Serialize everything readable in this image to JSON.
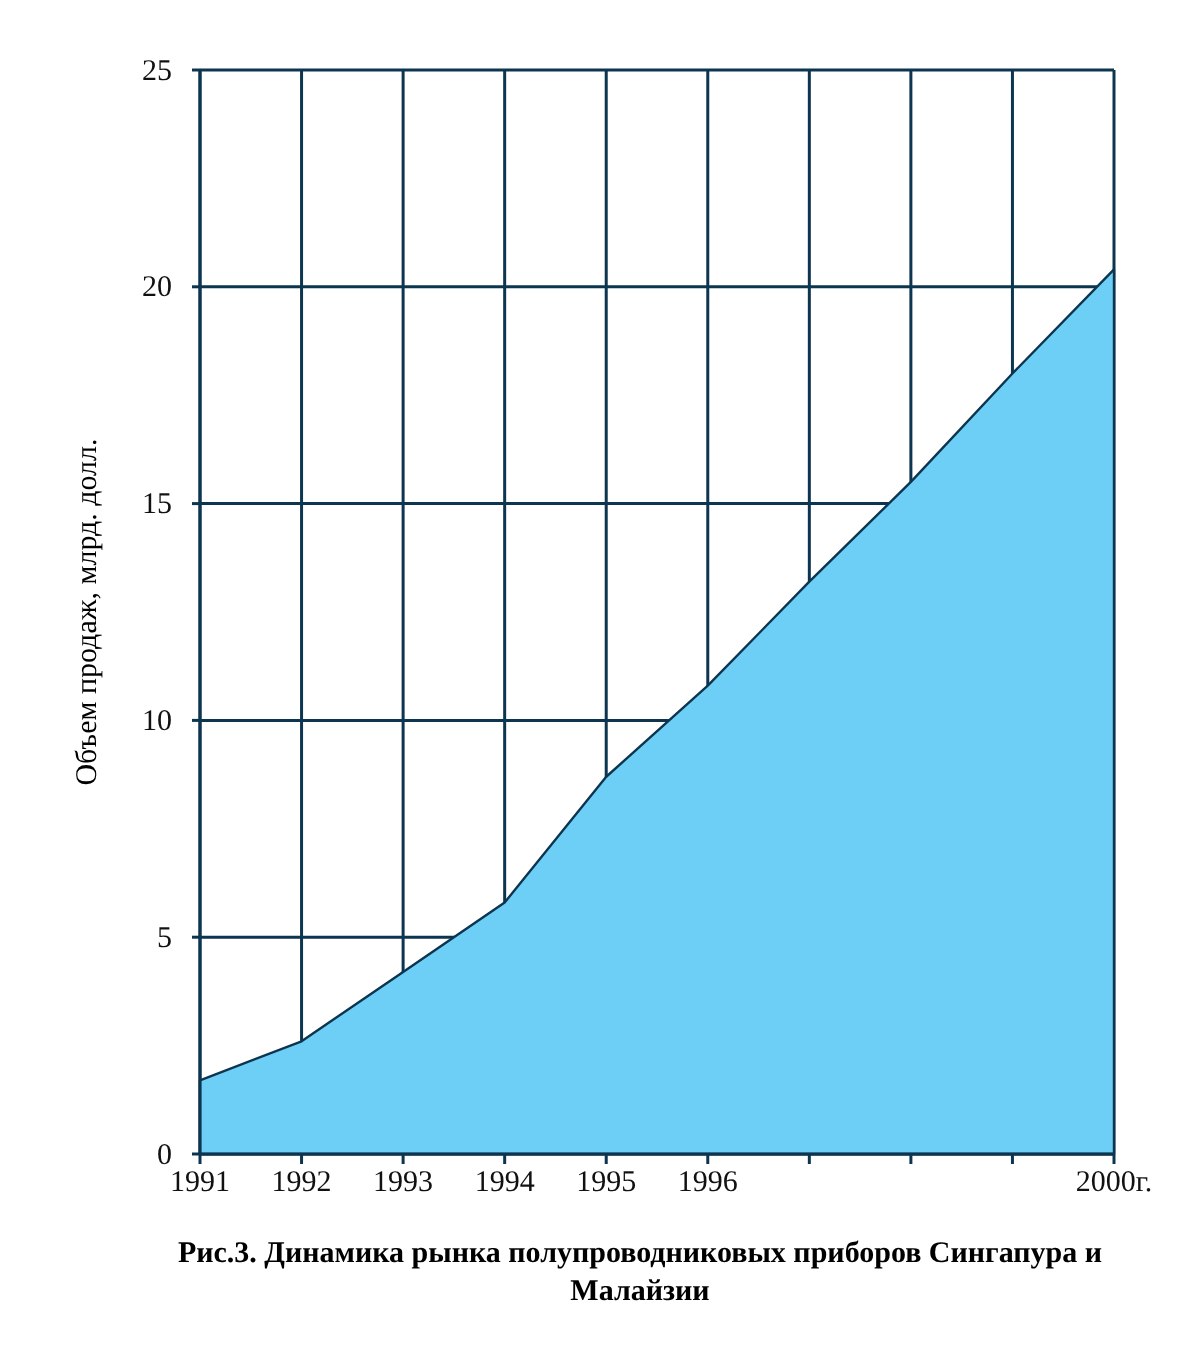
{
  "chart_data": {
    "type": "area",
    "title": "Рис.3. Динамика рынка полупроводниковых приборов Сингапура и Малайзии",
    "ylabel": "Объем продаж, млрд. долл.",
    "x": [
      1991,
      1992,
      1993,
      1994,
      1995,
      1996,
      1997,
      1998,
      1999,
      2000
    ],
    "series": [
      {
        "color": "#6ecff6",
        "values": [
          1.7,
          2.6,
          4.2,
          5.8,
          8.7,
          10.8,
          13.2,
          15.5,
          18.0,
          20.4
        ]
      }
    ],
    "xlim": [
      1991,
      2000
    ],
    "xticks": [
      1991,
      1992,
      1993,
      1994,
      1995,
      1996,
      {
        "value": 1997,
        "label": null
      },
      {
        "value": 1998,
        "label": null
      },
      {
        "value": 1999,
        "label": null
      },
      {
        "value": 2000,
        "label": "2000г."
      }
    ],
    "ylim": [
      0,
      25
    ],
    "yticks": [
      0,
      5,
      10,
      15,
      20,
      25
    ],
    "grid": true
  }
}
